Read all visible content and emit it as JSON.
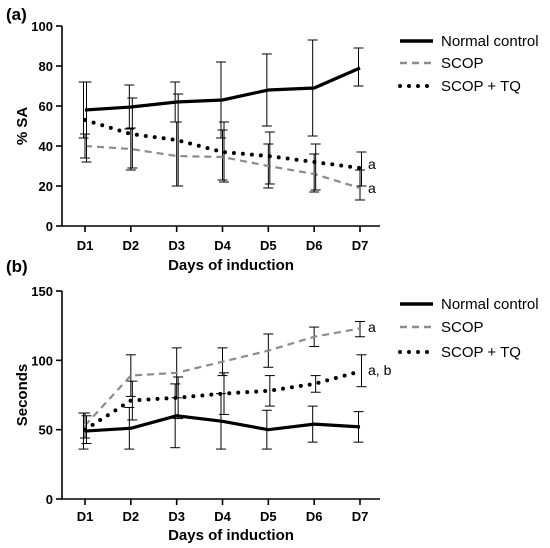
{
  "chart_data": [
    {
      "type": "line",
      "panel_label": "(a)",
      "xlabel": "Days of induction",
      "ylabel": "% SA",
      "categories": [
        "D1",
        "D2",
        "D3",
        "D4",
        "D5",
        "D6",
        "D7"
      ],
      "ylim": [
        0,
        100
      ],
      "yticks": [
        0,
        20,
        40,
        60,
        80,
        100
      ],
      "legend_position": "top-right",
      "series": [
        {
          "name": "Normal control",
          "style": "solid",
          "color": "#000000",
          "values": [
            58,
            59.5,
            62,
            63,
            68,
            69,
            79
          ],
          "err_upper": [
            72,
            70.5,
            72,
            82,
            86,
            93,
            89
          ],
          "err_lower": [
            44,
            48.5,
            52,
            44,
            50,
            45,
            70
          ]
        },
        {
          "name": "SCOP",
          "style": "dashed",
          "color": "#8c8c8c",
          "values": [
            40,
            38.5,
            35,
            34.5,
            30,
            26,
            19
          ],
          "err_upper": [
            46,
            49,
            52,
            48,
            41,
            36,
            28
          ],
          "err_lower": [
            34,
            28,
            20,
            23,
            19,
            17,
            13
          ]
        },
        {
          "name": "SCOP + TQ",
          "style": "dotted",
          "color": "#000000",
          "values": [
            53,
            46,
            43,
            37,
            35,
            32,
            29
          ],
          "err_upper": [
            72,
            64,
            66,
            52,
            47,
            41,
            37
          ],
          "err_lower": [
            32,
            29,
            20,
            22,
            21,
            18,
            20
          ]
        }
      ],
      "annotations": [
        {
          "text": "a",
          "series": "SCOP + TQ",
          "x": "D7",
          "y": 31
        },
        {
          "text": "a",
          "series": "SCOP",
          "x": "D7",
          "y": 19
        }
      ]
    },
    {
      "type": "line",
      "panel_label": "(b)",
      "xlabel": "Days of induction",
      "ylabel": "Seconds",
      "categories": [
        "D1",
        "D2",
        "D3",
        "D4",
        "D5",
        "D6",
        "D7"
      ],
      "ylim": [
        0,
        150
      ],
      "yticks": [
        0,
        50,
        100,
        150
      ],
      "legend_position": "top-right",
      "series": [
        {
          "name": "Normal control",
          "style": "solid",
          "color": "#000000",
          "values": [
            49,
            51,
            60,
            56,
            50,
            54,
            52
          ],
          "err_upper": [
            62,
            66,
            83,
            76,
            64,
            67,
            63
          ],
          "err_lower": [
            36,
            36,
            37,
            36,
            36,
            41,
            41
          ]
        },
        {
          "name": "SCOP",
          "style": "dashed",
          "color": "#8c8c8c",
          "values": [
            53,
            89,
            91,
            99,
            107,
            117,
            123
          ],
          "err_upper": [
            62,
            104,
            109,
            109,
            119,
            124,
            128
          ],
          "err_lower": [
            44,
            74,
            73,
            89,
            95,
            110,
            117
          ]
        },
        {
          "name": "SCOP + TQ",
          "style": "dotted",
          "color": "#000000",
          "values": [
            50,
            71,
            73,
            76,
            78,
            83,
            92
          ],
          "err_upper": [
            60,
            85,
            88,
            91,
            89,
            89,
            104
          ],
          "err_lower": [
            40,
            57,
            58,
            61,
            67,
            77,
            81
          ]
        }
      ],
      "annotations": [
        {
          "text": "a",
          "series": "SCOP",
          "x": "D7",
          "y": 124
        },
        {
          "text": "a, b",
          "series": "SCOP + TQ",
          "x": "D7",
          "y": 93
        }
      ]
    }
  ]
}
